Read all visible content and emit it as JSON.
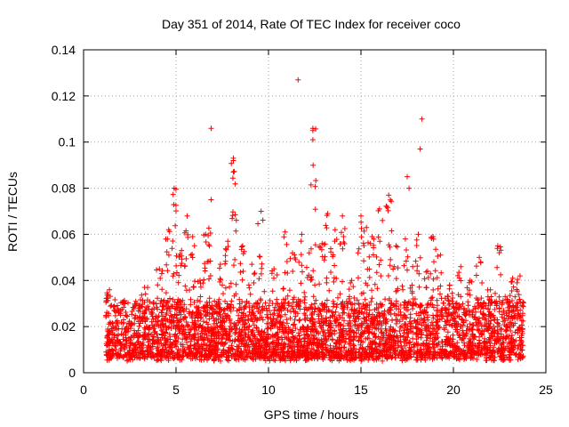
{
  "chart_data": {
    "type": "scatter",
    "title": "Day 351 of 2014, Rate Of TEC Index for receiver coco",
    "xlabel": "GPS time / hours",
    "ylabel": "ROTI / TECUs",
    "xlim": [
      0,
      25
    ],
    "ylim": [
      0,
      0.14
    ],
    "xticks": [
      0,
      5,
      10,
      15,
      20,
      25
    ],
    "xtick_labels": [
      "0",
      "5",
      "10",
      "15",
      "20",
      "25"
    ],
    "yticks": [
      0,
      0.02,
      0.04,
      0.06,
      0.08,
      0.1,
      0.12,
      0.14
    ],
    "ytick_labels": [
      "0",
      "0.02",
      "0.04",
      "0.06",
      "0.08",
      "0.1",
      "0.12",
      "0.14"
    ],
    "grid": true,
    "marker": "+",
    "color": "#ff0000",
    "data_x_range": [
      1.2,
      23.8
    ],
    "bulk_band": [
      0.005,
      0.03
    ],
    "dense_generation_seed": 351,
    "dense_point_count": 3600,
    "spikes": [
      {
        "x": 1.4,
        "y": 0.036,
        "n": 5
      },
      {
        "x": 2.2,
        "y": 0.031,
        "n": 4
      },
      {
        "x": 3.3,
        "y": 0.037,
        "n": 4
      },
      {
        "x": 4.1,
        "y": 0.045,
        "n": 6
      },
      {
        "x": 4.6,
        "y": 0.062,
        "n": 8
      },
      {
        "x": 4.9,
        "y": 0.08,
        "n": 14
      },
      {
        "x": 5.3,
        "y": 0.053,
        "n": 8
      },
      {
        "x": 5.6,
        "y": 0.068,
        "n": 10
      },
      {
        "x": 5.9,
        "y": 0.059,
        "n": 8
      },
      {
        "x": 6.3,
        "y": 0.04,
        "n": 6
      },
      {
        "x": 6.6,
        "y": 0.06,
        "n": 8
      },
      {
        "x": 6.9,
        "y": 0.075,
        "n": 10
      },
      {
        "x": 7.4,
        "y": 0.047,
        "n": 6
      },
      {
        "x": 7.8,
        "y": 0.057,
        "n": 8
      },
      {
        "x": 8.1,
        "y": 0.093,
        "n": 16
      },
      {
        "x": 8.6,
        "y": 0.055,
        "n": 8
      },
      {
        "x": 9.1,
        "y": 0.047,
        "n": 6
      },
      {
        "x": 9.6,
        "y": 0.07,
        "n": 10
      },
      {
        "x": 10.3,
        "y": 0.045,
        "n": 6
      },
      {
        "x": 10.9,
        "y": 0.061,
        "n": 8
      },
      {
        "x": 11.3,
        "y": 0.052,
        "n": 6
      },
      {
        "x": 11.8,
        "y": 0.06,
        "n": 8
      },
      {
        "x": 12.2,
        "y": 0.052,
        "n": 6
      },
      {
        "x": 12.4,
        "y": 0.106,
        "n": 12
      },
      {
        "x": 12.9,
        "y": 0.056,
        "n": 8
      },
      {
        "x": 13.2,
        "y": 0.069,
        "n": 10
      },
      {
        "x": 13.6,
        "y": 0.062,
        "n": 8
      },
      {
        "x": 14.0,
        "y": 0.068,
        "n": 10
      },
      {
        "x": 14.5,
        "y": 0.04,
        "n": 6
      },
      {
        "x": 15.0,
        "y": 0.068,
        "n": 10
      },
      {
        "x": 15.3,
        "y": 0.063,
        "n": 8
      },
      {
        "x": 15.6,
        "y": 0.059,
        "n": 8
      },
      {
        "x": 16.0,
        "y": 0.071,
        "n": 10
      },
      {
        "x": 16.5,
        "y": 0.077,
        "n": 12
      },
      {
        "x": 16.9,
        "y": 0.055,
        "n": 8
      },
      {
        "x": 17.4,
        "y": 0.058,
        "n": 8
      },
      {
        "x": 17.8,
        "y": 0.046,
        "n": 6
      },
      {
        "x": 18.1,
        "y": 0.06,
        "n": 8
      },
      {
        "x": 18.6,
        "y": 0.044,
        "n": 6
      },
      {
        "x": 18.9,
        "y": 0.059,
        "n": 8
      },
      {
        "x": 19.3,
        "y": 0.051,
        "n": 6
      },
      {
        "x": 19.8,
        "y": 0.038,
        "n": 6
      },
      {
        "x": 20.4,
        "y": 0.046,
        "n": 6
      },
      {
        "x": 20.9,
        "y": 0.04,
        "n": 6
      },
      {
        "x": 21.4,
        "y": 0.05,
        "n": 6
      },
      {
        "x": 22.0,
        "y": 0.036,
        "n": 6
      },
      {
        "x": 22.4,
        "y": 0.055,
        "n": 8
      },
      {
        "x": 22.8,
        "y": 0.033,
        "n": 5
      },
      {
        "x": 23.2,
        "y": 0.041,
        "n": 6
      },
      {
        "x": 23.6,
        "y": 0.042,
        "n": 6
      }
    ],
    "outliers": [
      {
        "x": 6.9,
        "y": 0.106
      },
      {
        "x": 11.6,
        "y": 0.127
      },
      {
        "x": 12.4,
        "y": 0.101
      },
      {
        "x": 12.4,
        "y": 0.105
      },
      {
        "x": 18.3,
        "y": 0.11
      },
      {
        "x": 18.2,
        "y": 0.097
      },
      {
        "x": 17.5,
        "y": 0.085
      },
      {
        "x": 17.6,
        "y": 0.08
      },
      {
        "x": 8.1,
        "y": 0.092
      },
      {
        "x": 8.1,
        "y": 0.087
      }
    ]
  }
}
